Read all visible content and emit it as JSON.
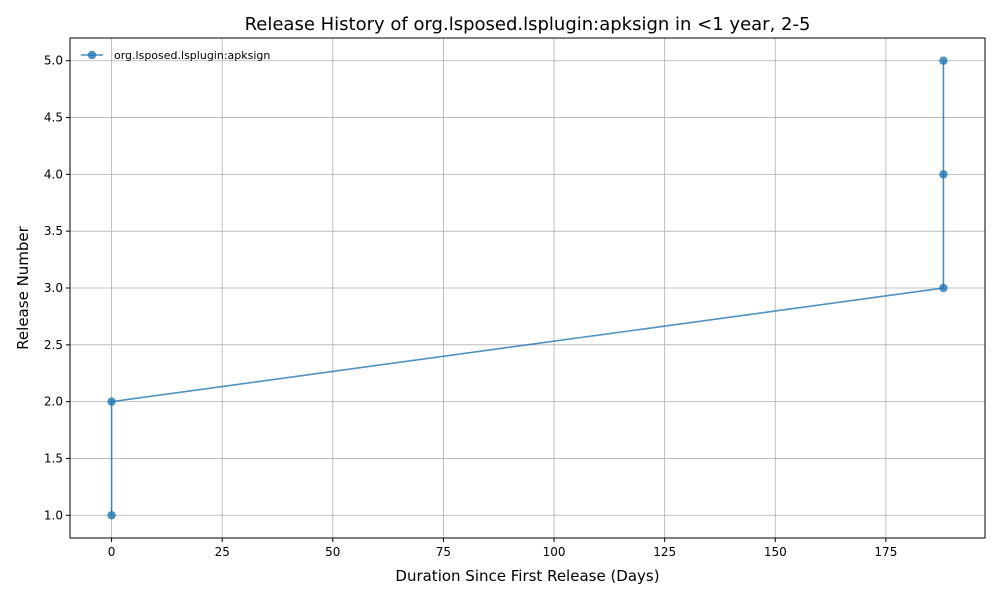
{
  "chart_data": {
    "type": "line",
    "title": "Release History of org.lsposed.lsplugin:apksign in <1 year, 2-5",
    "xlabel": "Duration Since First Release (Days)",
    "ylabel": "Release Number",
    "xlim": [
      -9.4,
      197.4
    ],
    "ylim": [
      0.8,
      5.2
    ],
    "x_ticks": [
      0,
      25,
      50,
      75,
      100,
      125,
      150,
      175
    ],
    "x_tick_labels": [
      "0",
      "25",
      "50",
      "75",
      "100",
      "125",
      "150",
      "175"
    ],
    "y_ticks": [
      1.0,
      1.5,
      2.0,
      2.5,
      3.0,
      3.5,
      4.0,
      4.5,
      5.0
    ],
    "y_tick_labels": [
      "1.0",
      "1.5",
      "2.0",
      "2.5",
      "3.0",
      "3.5",
      "4.0",
      "4.5",
      "5.0"
    ],
    "grid": true,
    "legend_position": "top-left",
    "series": [
      {
        "name": "org.lsposed.lsplugin:apksign",
        "color": "#1f77b4",
        "marker": "circle",
        "x": [
          0,
          0,
          188,
          188,
          188
        ],
        "y": [
          1,
          2,
          3,
          4,
          5
        ]
      }
    ]
  }
}
